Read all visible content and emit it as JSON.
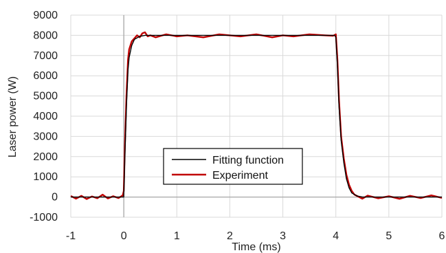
{
  "chart_data": {
    "type": "line",
    "xlabel": "Time (ms)",
    "ylabel": "Laser power (W)",
    "xlim": [
      -1,
      6
    ],
    "ylim": [
      -1000,
      9000
    ],
    "x_ticks": [
      "-1",
      "0",
      "1",
      "2",
      "3",
      "4",
      "5",
      "6"
    ],
    "y_ticks": [
      "-1000",
      "0",
      "1000",
      "2000",
      "3000",
      "4000",
      "5000",
      "6000",
      "7000",
      "8000",
      "9000"
    ],
    "grid": true,
    "legend": "center-left",
    "series": [
      {
        "name": "Fitting function",
        "color": "#000000",
        "x": [
          -1,
          0,
          0.02,
          0.05,
          0.08,
          0.1,
          0.15,
          0.2,
          0.3,
          0.4,
          0.5,
          1,
          2,
          3,
          3.9,
          3.98,
          4.0,
          4.03,
          4.06,
          4.1,
          4.15,
          4.2,
          4.25,
          4.3,
          4.4,
          4.5,
          5,
          6
        ],
        "y": [
          0,
          0,
          2000,
          4500,
          6300,
          6900,
          7500,
          7800,
          7950,
          8000,
          8000,
          8000,
          8000,
          8000,
          8000,
          8000,
          7900,
          6500,
          4500,
          2800,
          1700,
          900,
          450,
          200,
          50,
          0,
          0,
          0
        ]
      },
      {
        "name": "Experiment",
        "color": "#c00000",
        "x": [
          -1,
          -0.9,
          -0.8,
          -0.7,
          -0.6,
          -0.5,
          -0.4,
          -0.3,
          -0.2,
          -0.1,
          -0.02,
          0,
          0.02,
          0.05,
          0.08,
          0.1,
          0.15,
          0.2,
          0.25,
          0.3,
          0.35,
          0.4,
          0.45,
          0.5,
          0.6,
          0.8,
          1.0,
          1.2,
          1.5,
          1.8,
          2.0,
          2.2,
          2.5,
          2.8,
          3.0,
          3.2,
          3.5,
          3.8,
          3.95,
          4.0,
          4.03,
          4.06,
          4.1,
          4.15,
          4.2,
          4.25,
          4.3,
          4.35,
          4.4,
          4.5,
          4.6,
          4.8,
          5.0,
          5.2,
          5.4,
          5.6,
          5.8,
          6.0
        ],
        "y": [
          50,
          -80,
          60,
          -100,
          30,
          -60,
          120,
          -70,
          40,
          -50,
          80,
          300,
          2500,
          5000,
          6800,
          7300,
          7700,
          7850,
          8000,
          7900,
          8100,
          8150,
          7950,
          8000,
          7900,
          8050,
          7950,
          8000,
          7900,
          8050,
          8000,
          7950,
          8050,
          7900,
          8000,
          7950,
          8050,
          8000,
          7980,
          8050,
          6800,
          4800,
          3000,
          1900,
          1100,
          600,
          300,
          120,
          50,
          -80,
          70,
          -60,
          40,
          -90,
          60,
          -50,
          80,
          -40
        ]
      }
    ]
  }
}
